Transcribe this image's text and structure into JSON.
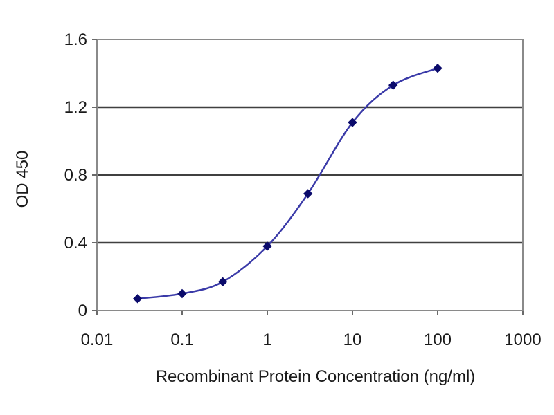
{
  "chart_data": {
    "type": "line",
    "title": "",
    "xlabel": "Recombinant Protein Concentration (ng/ml)",
    "ylabel": "OD 450",
    "xscale": "log",
    "xlim": [
      0.01,
      1000
    ],
    "ylim": [
      0,
      1.6
    ],
    "xticks": [
      0.01,
      0.1,
      1,
      10,
      100,
      1000
    ],
    "xtick_labels": [
      "0.01",
      "0.1",
      "1",
      "10",
      "100",
      "1000"
    ],
    "yticks": [
      0,
      0.4,
      0.8,
      1.2,
      1.6
    ],
    "ytick_labels": [
      "0",
      "0.4",
      "0.8",
      "1.2",
      "1.6"
    ],
    "grid": "horizontal",
    "legend": false,
    "series": [
      {
        "x": [
          0.03,
          0.1,
          0.3,
          1,
          3,
          10,
          30,
          100
        ],
        "y": [
          0.07,
          0.1,
          0.17,
          0.38,
          0.69,
          1.11,
          1.33,
          1.43
        ],
        "line_color": "#3a3aa8",
        "marker_color": "#0b0b6b",
        "marker": "diamond",
        "smooth": true
      }
    ]
  }
}
